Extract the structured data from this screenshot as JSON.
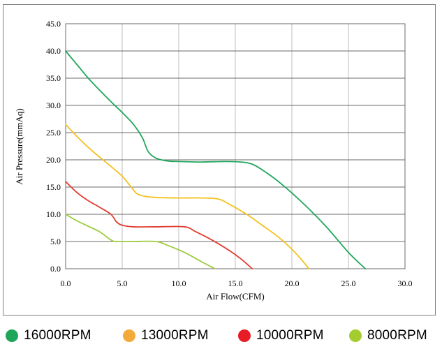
{
  "chart_data": {
    "type": "line",
    "xlabel": "Air Flow(CFM)",
    "ylabel": "Air Pressure(mmAq)",
    "xlim": [
      0,
      30
    ],
    "ylim": [
      0,
      45
    ],
    "xticks": [
      "0.0",
      "5.0",
      "10.0",
      "15.0",
      "20.0",
      "25.0",
      "30.0"
    ],
    "yticks": [
      "0.0",
      "5.0",
      "10.0",
      "15.0",
      "20.0",
      "25.0",
      "30.0",
      "35.0",
      "40.0",
      "45.0"
    ],
    "grid": true,
    "legend_position": "bottom",
    "series": [
      {
        "name": "16000RPM",
        "color": "#1fa65a",
        "x": [
          0,
          1,
          2,
          3,
          4,
          5,
          6,
          6.8,
          7.3,
          8,
          9,
          10,
          12,
          14,
          15.5,
          16.5,
          17.5,
          19,
          21,
          23,
          25,
          26.5
        ],
        "y": [
          40,
          37.5,
          35,
          32.8,
          30.7,
          28.7,
          26.5,
          24,
          21.5,
          20.3,
          19.8,
          19.7,
          19.6,
          19.7,
          19.6,
          19.2,
          18,
          15.7,
          12,
          7.8,
          3,
          0
        ]
      },
      {
        "name": "13000RPM",
        "color": "#f4c11e",
        "x": [
          0,
          1,
          2,
          3,
          4,
          5,
          5.8,
          6.3,
          7,
          8,
          10,
          12,
          13.5,
          14.5,
          16,
          17.5,
          19,
          20.5,
          21.5
        ],
        "y": [
          26.5,
          24.3,
          22.3,
          20.5,
          18.8,
          17,
          15,
          13.8,
          13.3,
          13.1,
          13,
          13,
          12.8,
          11.8,
          10,
          7.8,
          5.5,
          2.5,
          0
        ]
      },
      {
        "name": "10000RPM",
        "color": "#e23b2f",
        "x": [
          0,
          1,
          2,
          3,
          4,
          4.5,
          5,
          6,
          8,
          10.5,
          11.5,
          13,
          14.5,
          15.5,
          16.5
        ],
        "y": [
          16,
          14,
          12.5,
          11.3,
          10,
          8.6,
          8,
          7.7,
          7.7,
          7.7,
          6.8,
          5.2,
          3.3,
          1.8,
          0
        ]
      },
      {
        "name": "8000RPM",
        "color": "#9ccc3c",
        "x": [
          0,
          1,
          2,
          3,
          4,
          4.5,
          6,
          8,
          9,
          10.5,
          12,
          13.2
        ],
        "y": [
          10,
          8.8,
          7.8,
          6.8,
          5.3,
          5,
          5,
          5,
          4.3,
          3,
          1.3,
          0
        ]
      }
    ]
  },
  "legend": [
    {
      "label": "16000RPM",
      "color": "#1fa65a"
    },
    {
      "label": "13000RPM",
      "color": "#f4a93b"
    },
    {
      "label": "10000RPM",
      "color": "#e81c24"
    },
    {
      "label": "8000RPM",
      "color": "#a4cc2e"
    }
  ]
}
